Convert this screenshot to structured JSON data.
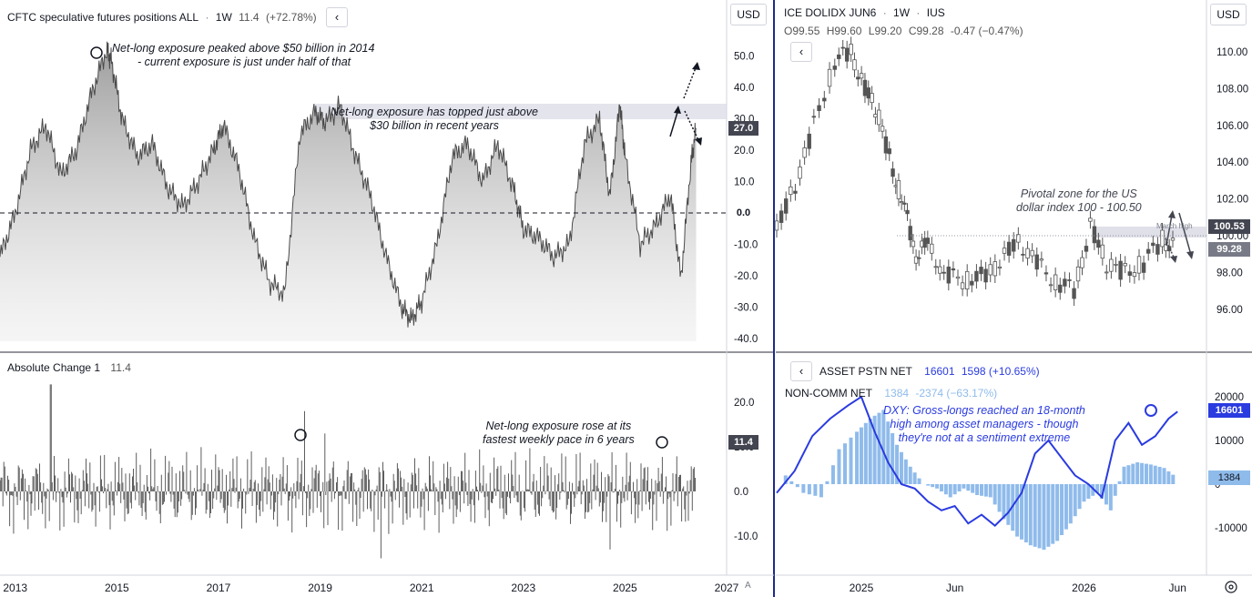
{
  "left_top": {
    "title": "CFTC speculative futures positions ALL",
    "interval": "1W",
    "value": "11.4",
    "change": "(+72.78%)",
    "currency": "USD",
    "last_tag": "27.0",
    "zero_tag": "0.0",
    "annotation_peak_1": "Net-long exposure peaked above $50 billion in 2014",
    "annotation_peak_2": "- current exposure is just under half of that",
    "annotation_top_1": "Net-long exposure has topped just above",
    "annotation_top_2": "$30 billion in recent years"
  },
  "left_bottom": {
    "title": "Absolute Change 1",
    "value": "11.4",
    "last_tag": "11.4",
    "annotation_1": "Net-long exposure rose at its",
    "annotation_2": "fastest weekly pace in 6 years"
  },
  "right_top": {
    "symbol": "ICE DOLIDX JUN6",
    "interval": "1W",
    "exchange": "IUS",
    "open": "O99.55",
    "high": "H99.60",
    "low": "L99.20",
    "close": "C99.28",
    "change": "-0.47 (−0.47%)",
    "currency": "USD",
    "march_high_label": "March high",
    "tag_high": "100.53",
    "tag_last": "99.28",
    "annotation_1": "Pivotal zone for the US",
    "annotation_2": "dollar index 100 - 100.50"
  },
  "right_bottom": {
    "title": "ASSET PSTN NET",
    "value": "16601",
    "change": "1598 (+10.65%)",
    "title2": "NON-COMM NET",
    "value2": "1384",
    "change2": "-2374 (−63.17%)",
    "tag_asset": "16601",
    "tag_noncomm": "1384",
    "annotation_1": "DXY: Gross-longs reached an 18-month",
    "annotation_2": "high among asset managers - though",
    "annotation_3": "they're not at a sentiment extreme"
  },
  "colors": {
    "asset_line": "#2a3be0",
    "noncomm_bars": "#8fbbeb",
    "area": "#a0a0a0",
    "tag_dark": "#434651",
    "tag_blue": "#2a3be0"
  },
  "chart_data": [
    {
      "type": "area",
      "title": "CFTC speculative futures positions ALL",
      "y_ticks": [
        "50.0",
        "40.0",
        "30.0",
        "20.0",
        "10.0",
        "0.0",
        "-10.0",
        "-20.0",
        "-30.0",
        "-40.0"
      ],
      "ylim": [
        -40,
        55
      ],
      "x": [
        2012.7,
        2013.0,
        2013.3,
        2013.6,
        2013.9,
        2014.2,
        2014.5,
        2014.8,
        2014.9,
        2015.1,
        2015.4,
        2015.7,
        2016.0,
        2016.3,
        2016.6,
        2016.9,
        2017.1,
        2017.4,
        2017.7,
        2018.0,
        2018.3,
        2018.6,
        2018.9,
        2019.1,
        2019.4,
        2019.7,
        2020.0,
        2020.3,
        2020.6,
        2020.8,
        2021.0,
        2021.3,
        2021.6,
        2021.9,
        2022.2,
        2022.5,
        2022.8,
        2023.0,
        2023.3,
        2023.6,
        2023.9,
        2024.2,
        2024.5,
        2024.7,
        2024.9,
        2025.0,
        2025.3,
        2025.6,
        2025.9,
        2026.1,
        2026.3,
        2026.4
      ],
      "values": [
        -14,
        0,
        20,
        28,
        12,
        20,
        38,
        52,
        48,
        30,
        18,
        22,
        8,
        2,
        10,
        20,
        28,
        14,
        -8,
        -22,
        -26,
        25,
        32,
        29,
        34,
        18,
        5,
        -14,
        -30,
        -34,
        -28,
        -10,
        18,
        22,
        10,
        22,
        8,
        -5,
        -8,
        -14,
        -10,
        22,
        30,
        5,
        35,
        18,
        -10,
        -4,
        6,
        -21,
        16,
        27
      ],
      "annotations": [
        "Net-long exposure peaked above $50 billion in 2014 - current exposure is just under half of that",
        "Net-long exposure has topped just above $30 billion in recent years"
      ]
    },
    {
      "type": "bar",
      "title": "Absolute Change 1",
      "y_ticks": [
        "20.0",
        "10.0",
        "0.0",
        "-10.0"
      ],
      "ylim": [
        -18,
        24
      ],
      "x_ticks": [
        "2013",
        "2015",
        "2017",
        "2019",
        "2021",
        "2023",
        "2025",
        "2027"
      ],
      "spikes": [
        {
          "x": 2013.7,
          "value": 24
        },
        {
          "x": 2018.7,
          "value": 18
        },
        {
          "x": 2019.1,
          "value": 13
        },
        {
          "x": 2020.2,
          "value": -15
        },
        {
          "x": 2024.7,
          "value": -13
        },
        {
          "x": 2026.4,
          "value": 11.4
        }
      ],
      "annotations": [
        "Net-long exposure rose at its fastest weekly pace in 6 years"
      ]
    },
    {
      "type": "line",
      "title": "ICE DOLIDX JUN6",
      "y_ticks": [
        "110.00",
        "108.00",
        "106.00",
        "104.00",
        "102.00",
        "100.00",
        "98.00",
        "96.00"
      ],
      "ylim": [
        94.5,
        111.5
      ],
      "x_ticks": [
        "2025",
        "Jun",
        "2026",
        "Jun"
      ],
      "x": [
        2024.7,
        2024.78,
        2024.86,
        2024.95,
        2025.02,
        2025.08,
        2025.14,
        2025.2,
        2025.25,
        2025.3,
        2025.35,
        2025.42,
        2025.5,
        2025.58,
        2025.66,
        2025.74,
        2025.82,
        2025.9,
        2025.98,
        2026.05,
        2026.12,
        2026.2,
        2026.28,
        2026.36,
        2026.42
      ],
      "values": [
        100.3,
        102.8,
        106.0,
        109.5,
        110.0,
        108.0,
        106.5,
        103.5,
        101.5,
        99.0,
        99.5,
        98.0,
        97.5,
        97.8,
        98.5,
        99.8,
        98.5,
        97.5,
        97.0,
        100.5,
        98.5,
        98.0,
        98.5,
        99.8,
        99.28
      ],
      "levels": [
        {
          "label": "March high",
          "value": 100.53
        }
      ],
      "annotations": [
        "Pivotal zone for the US dollar index 100 - 100.50"
      ]
    },
    {
      "type": "bar",
      "title": "ASSET PSTN NET / NON-COMM NET",
      "y_ticks": [
        "20000",
        "10000",
        "0",
        "-10000"
      ],
      "ylim": [
        -16000,
        24000
      ],
      "x_ticks": [
        "2025",
        "Jun",
        "2026",
        "Jun"
      ],
      "series": [
        {
          "name": "ASSET PSTN NET",
          "kind": "line",
          "x": [
            2024.62,
            2024.7,
            2024.78,
            2024.86,
            2024.94,
            2025.0,
            2025.06,
            2025.12,
            2025.18,
            2025.24,
            2025.3,
            2025.36,
            2025.42,
            2025.48,
            2025.54,
            2025.6,
            2025.66,
            2025.72,
            2025.78,
            2025.84,
            2025.9,
            2025.96,
            2026.02,
            2026.08,
            2026.14,
            2026.2,
            2026.26,
            2026.32,
            2026.38,
            2026.42
          ],
          "values": [
            -2000,
            3000,
            11000,
            15000,
            18000,
            20000,
            12000,
            5000,
            0,
            -1000,
            -4000,
            -6000,
            -5000,
            -9000,
            -7000,
            -9500,
            -6500,
            -2000,
            7000,
            10000,
            6000,
            2000,
            0,
            -3000,
            10000,
            14000,
            9000,
            11000,
            15000,
            16601
          ]
        },
        {
          "name": "NON-COMM NET",
          "kind": "bars",
          "x": [
            2024.66,
            2024.74,
            2024.82,
            2024.9,
            2024.98,
            2025.04,
            2025.1,
            2025.16,
            2025.22,
            2025.28,
            2025.34,
            2025.4,
            2025.46,
            2025.52,
            2025.58,
            2025.64,
            2025.7,
            2025.76,
            2025.82,
            2025.88,
            2025.94,
            2026.0,
            2026.06,
            2026.12,
            2026.18,
            2026.24,
            2026.3,
            2026.36,
            2026.42
          ],
          "values": [
            2000,
            -2000,
            -3000,
            8000,
            12000,
            15000,
            17000,
            9000,
            4000,
            0,
            -1000,
            -3000,
            -1000,
            -2500,
            -3000,
            -8000,
            -12000,
            -14000,
            -15000,
            -13000,
            -9000,
            -4000,
            -2000,
            -6000,
            4000,
            5000,
            4500,
            3700,
            1384
          ]
        }
      ],
      "annotations": [
        "DXY: Gross-longs reached an 18-month high among asset managers - though they're not at a sentiment extreme"
      ]
    }
  ]
}
